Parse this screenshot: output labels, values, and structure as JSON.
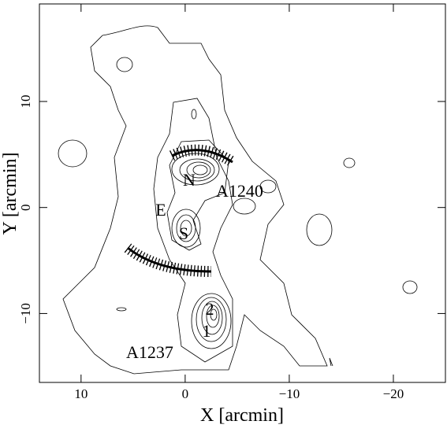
{
  "chart_data": {
    "type": "contour",
    "x_label": "X [arcmin]",
    "y_label": "Y [arcmin]",
    "xlim": [
      14,
      -25
    ],
    "ylim": [
      -16.5,
      19.2
    ],
    "xticks": [
      10,
      0,
      {
        "value": -10,
        "label": "−10"
      },
      {
        "value": -20,
        "label": "−20"
      }
    ],
    "yticks": [
      {
        "value": -10,
        "label": "−10"
      },
      0,
      10
    ],
    "annotations": [
      "N",
      "A1240",
      "E",
      "S",
      "2",
      "1",
      "A1237"
    ],
    "grid": false
  }
}
